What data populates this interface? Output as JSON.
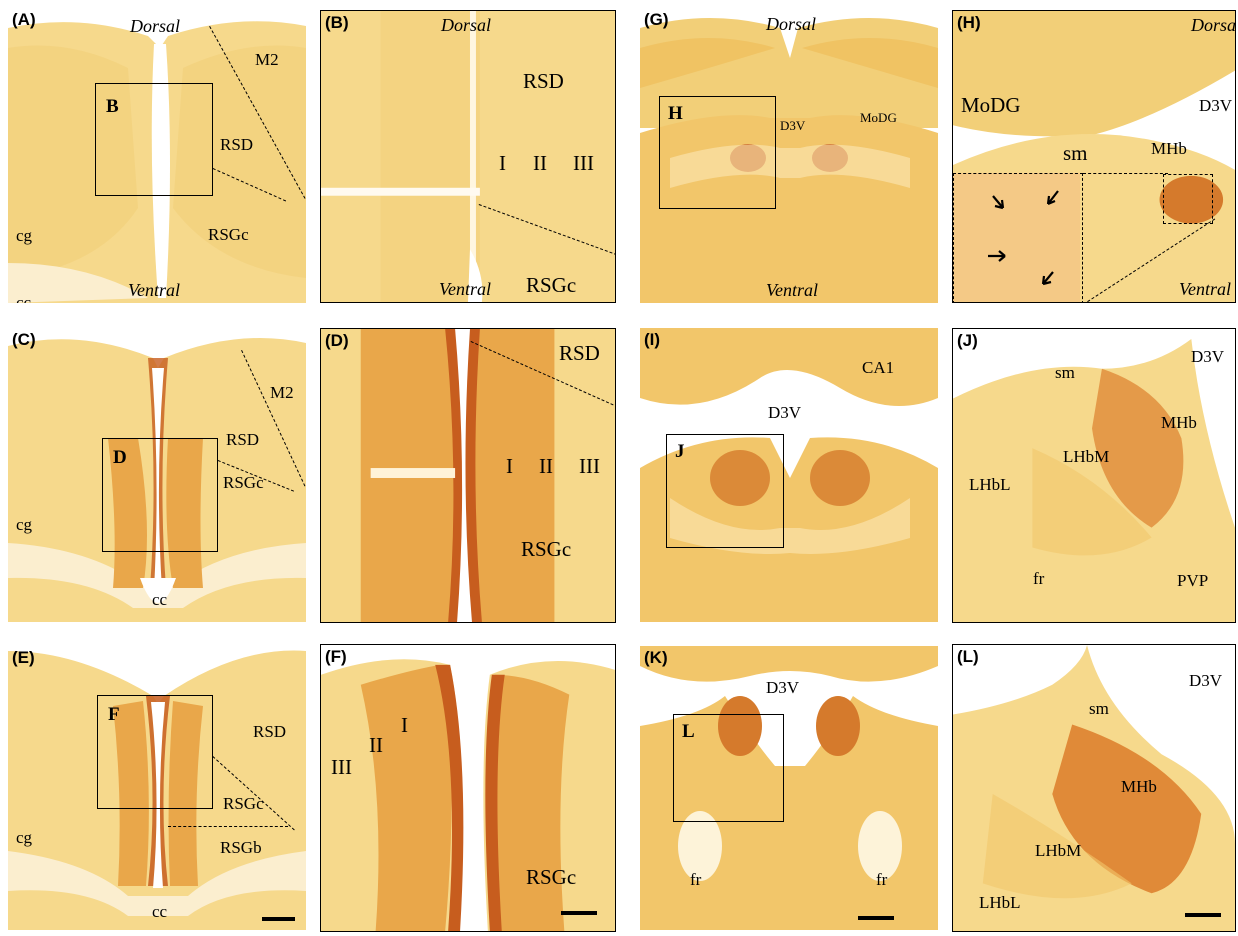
{
  "colors": {
    "tissue_light": "#f6d98c",
    "tissue_mid": "#eebb55",
    "stain_dark": "#c75d1e",
    "gap": "#ffffff"
  },
  "panels": {
    "A": {
      "label": "(A)",
      "dorsal": "Dorsal",
      "ventral": "Ventral",
      "m2": "M2",
      "rsd": "RSD",
      "rsgc": "RSGc",
      "cg": "cg",
      "cc": "cc",
      "inset": "B"
    },
    "B": {
      "label": "(B)",
      "dorsal": "Dorsal",
      "ventral": "Ventral",
      "rsd": "RSD",
      "layer1": "I",
      "layer2": "II",
      "layer3": "III",
      "rsgc": "RSGc"
    },
    "C": {
      "label": "(C)",
      "m2": "M2",
      "rsd": "RSD",
      "rsgc": "RSGc",
      "cg": "cg",
      "cc": "cc",
      "inset": "D"
    },
    "D": {
      "label": "(D)",
      "rsd": "RSD",
      "layer1": "I",
      "layer2": "II",
      "layer3": "III",
      "rsgc": "RSGc"
    },
    "E": {
      "label": "(E)",
      "rsd": "RSD",
      "rsgc": "RSGc",
      "rsgb": "RSGb",
      "cg": "cg",
      "cc": "cc",
      "inset": "F"
    },
    "F": {
      "label": "(F)",
      "layer1": "I",
      "layer2": "II",
      "layer3": "III",
      "rsgc": "RSGc"
    },
    "G": {
      "label": "(G)",
      "dorsal": "Dorsal",
      "ventral": "Ventral",
      "d3v": "D3V",
      "modg": "MoDG",
      "inset": "H"
    },
    "H": {
      "label": "(H)",
      "dorsal": "Dorsal",
      "ventral": "Ventral",
      "modg": "MoDG",
      "d3v": "D3V",
      "sm": "sm",
      "mhb": "MHb"
    },
    "I": {
      "label": "(I)",
      "ca1": "CA1",
      "d3v": "D3V",
      "inset": "J"
    },
    "J": {
      "label": "(J)",
      "d3v": "D3V",
      "sm": "sm",
      "mhb": "MHb",
      "lhbm": "LHbM",
      "lhbl": "LHbL",
      "fr": "fr",
      "pvp": "PVP"
    },
    "K": {
      "label": "(K)",
      "d3v": "D3V",
      "fr_left": "fr",
      "fr_right": "fr",
      "inset": "L"
    },
    "L": {
      "label": "(L)",
      "d3v": "D3V",
      "sm": "sm",
      "mhb": "MHb",
      "lhbm": "LHbM",
      "lhbl": "LHbL"
    }
  }
}
